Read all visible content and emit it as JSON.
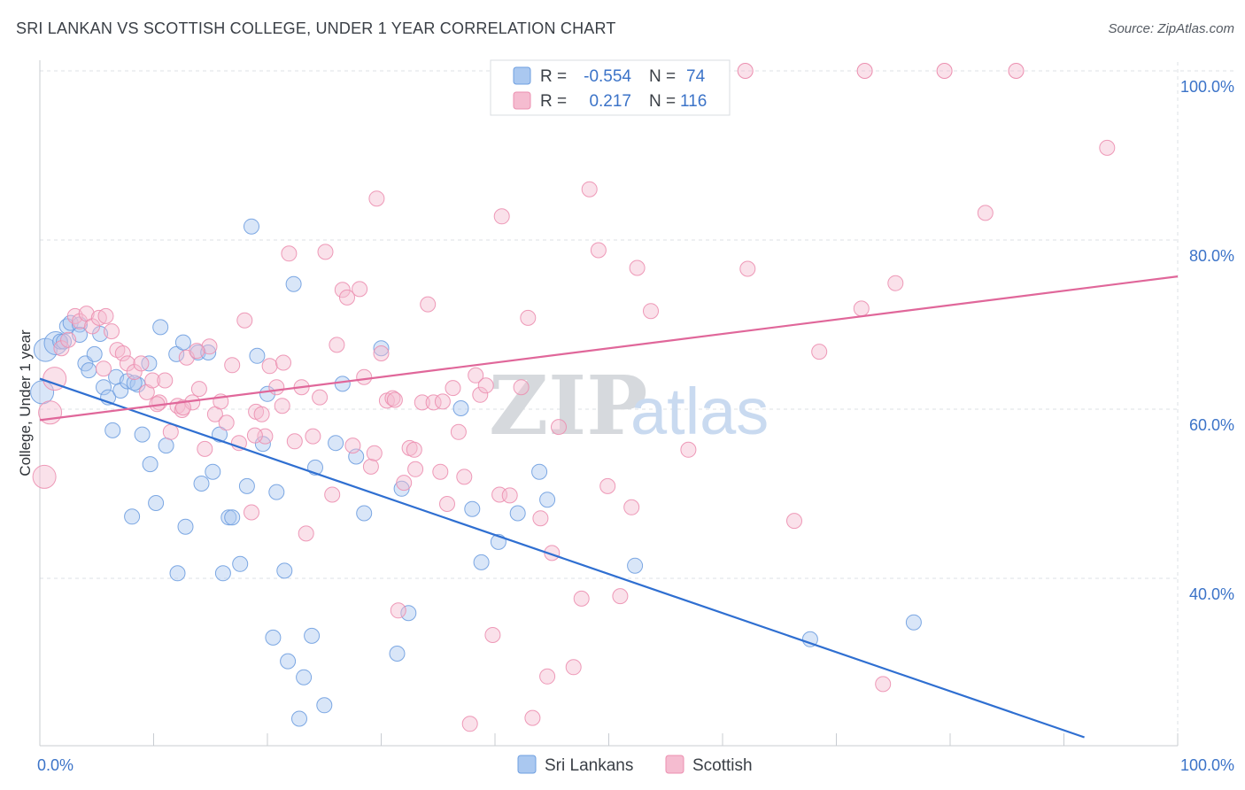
{
  "header": {
    "title": "SRI LANKAN VS SCOTTISH COLLEGE, UNDER 1 YEAR CORRELATION CHART",
    "source": "Source: ZipAtlas.com"
  },
  "watermark": {
    "zip": "ZIP",
    "atlas": "atlas"
  },
  "colors": {
    "blue": "#6f9fe0",
    "blue_fill": "#aac8f0",
    "blue_line": "#2f6fd1",
    "pink": "#ec8fb0",
    "pink_fill": "#f5bcd0",
    "pink_line": "#e0679a",
    "tick": "#3b73c8",
    "grid": "#dde1e6"
  },
  "legend": {
    "rows": [
      {
        "r_label": "R =",
        "r_value": "-0.554",
        "n_label": "N =",
        "n_value": "74"
      },
      {
        "r_label": "R =",
        "r_value": "0.217",
        "n_label": "N =",
        "n_value": "116"
      }
    ]
  },
  "chart_data": {
    "type": "scatter",
    "xlabel": "",
    "ylabel": "College, Under 1 year",
    "xlim": [
      0,
      100
    ],
    "ylim": [
      20,
      102
    ],
    "x_tick_labels": {
      "left": "0.0%",
      "right": "100.0%"
    },
    "y_ticks": [
      {
        "value": 100,
        "label": "100.0%"
      },
      {
        "value": 80,
        "label": "80.0%"
      },
      {
        "value": 60,
        "label": "60.0%"
      },
      {
        "value": 40,
        "label": "40.0%"
      }
    ],
    "grid": true,
    "legend_position": "top-center",
    "series": [
      {
        "name": "Sri Lankans",
        "color": "#6f9fe0",
        "trend": {
          "x": [
            0,
            91.8
          ],
          "y": [
            63.6,
            21.2
          ]
        },
        "points": [
          [
            0.2,
            62.0
          ],
          [
            0.5,
            67.0
          ],
          [
            1.4,
            67.8
          ],
          [
            1.8,
            68.0
          ],
          [
            2.4,
            69.8
          ],
          [
            2.7,
            70.2
          ],
          [
            3.5,
            70.0
          ],
          [
            3.5,
            68.8
          ],
          [
            4.0,
            65.4
          ],
          [
            4.3,
            64.6
          ],
          [
            4.8,
            66.5
          ],
          [
            5.3,
            68.9
          ],
          [
            5.6,
            62.6
          ],
          [
            6.0,
            61.4
          ],
          [
            6.4,
            57.5
          ],
          [
            6.7,
            63.8
          ],
          [
            7.1,
            62.2
          ],
          [
            7.7,
            63.3
          ],
          [
            8.1,
            47.3
          ],
          [
            8.6,
            62.9
          ],
          [
            9.0,
            57.0
          ],
          [
            9.6,
            65.4
          ],
          [
            9.7,
            53.5
          ],
          [
            10.2,
            48.9
          ],
          [
            10.6,
            69.7
          ],
          [
            11.1,
            55.7
          ],
          [
            12.0,
            66.5
          ],
          [
            12.1,
            40.6
          ],
          [
            12.6,
            67.9
          ],
          [
            12.8,
            46.1
          ],
          [
            13.9,
            66.7
          ],
          [
            14.2,
            51.2
          ],
          [
            14.8,
            66.7
          ],
          [
            15.2,
            52.6
          ],
          [
            15.8,
            57.0
          ],
          [
            16.1,
            40.6
          ],
          [
            16.6,
            47.2
          ],
          [
            16.9,
            47.2
          ],
          [
            17.6,
            41.7
          ],
          [
            18.2,
            50.9
          ],
          [
            18.6,
            81.6
          ],
          [
            19.1,
            66.3
          ],
          [
            19.6,
            55.9
          ],
          [
            20.0,
            61.8
          ],
          [
            20.5,
            33.0
          ],
          [
            20.8,
            50.2
          ],
          [
            21.5,
            40.9
          ],
          [
            21.8,
            30.2
          ],
          [
            22.3,
            74.8
          ],
          [
            23.2,
            28.3
          ],
          [
            23.9,
            33.2
          ],
          [
            24.2,
            53.1
          ],
          [
            25.0,
            25.0
          ],
          [
            26.0,
            56.0
          ],
          [
            26.6,
            63.0
          ],
          [
            27.8,
            54.4
          ],
          [
            28.5,
            47.7
          ],
          [
            30.0,
            67.2
          ],
          [
            31.4,
            31.1
          ],
          [
            31.8,
            50.6
          ],
          [
            32.4,
            35.9
          ],
          [
            37.0,
            60.1
          ],
          [
            38.0,
            48.2
          ],
          [
            38.8,
            41.9
          ],
          [
            40.3,
            44.3
          ],
          [
            42.0,
            47.7
          ],
          [
            43.9,
            52.6
          ],
          [
            44.6,
            49.3
          ],
          [
            52.3,
            41.5
          ],
          [
            67.7,
            32.8
          ],
          [
            76.8,
            34.8
          ],
          [
            22.8,
            23.4
          ],
          [
            8.3,
            63.1
          ],
          [
            2.1,
            68.0
          ]
        ]
      },
      {
        "name": "Scottish",
        "color": "#ec8fb0",
        "trend": {
          "x": [
            0,
            100
          ],
          "y": [
            58.7,
            75.7
          ]
        },
        "points": [
          [
            0.4,
            52.0
          ],
          [
            0.9,
            59.6
          ],
          [
            1.3,
            63.6
          ],
          [
            1.9,
            67.2
          ],
          [
            2.5,
            68.2
          ],
          [
            3.1,
            71.0
          ],
          [
            3.5,
            70.4
          ],
          [
            4.1,
            71.3
          ],
          [
            4.6,
            69.8
          ],
          [
            5.2,
            70.8
          ],
          [
            5.8,
            71.0
          ],
          [
            6.3,
            69.2
          ],
          [
            6.8,
            67.0
          ],
          [
            7.3,
            66.6
          ],
          [
            7.7,
            65.4
          ],
          [
            8.3,
            64.4
          ],
          [
            8.9,
            65.4
          ],
          [
            9.4,
            62.0
          ],
          [
            9.9,
            63.4
          ],
          [
            10.5,
            60.8
          ],
          [
            11.0,
            63.4
          ],
          [
            11.5,
            57.3
          ],
          [
            12.1,
            60.4
          ],
          [
            12.5,
            59.9
          ],
          [
            12.9,
            66.1
          ],
          [
            13.4,
            60.8
          ],
          [
            14.0,
            62.4
          ],
          [
            14.5,
            55.3
          ],
          [
            14.9,
            67.4
          ],
          [
            15.4,
            59.4
          ],
          [
            15.9,
            60.9
          ],
          [
            16.4,
            58.4
          ],
          [
            16.9,
            65.2
          ],
          [
            17.5,
            56.0
          ],
          [
            18.0,
            70.5
          ],
          [
            18.6,
            47.8
          ],
          [
            19.0,
            59.7
          ],
          [
            19.5,
            59.4
          ],
          [
            19.8,
            56.8
          ],
          [
            20.2,
            65.1
          ],
          [
            20.8,
            62.6
          ],
          [
            21.4,
            65.5
          ],
          [
            21.9,
            78.4
          ],
          [
            22.4,
            56.2
          ],
          [
            23.0,
            62.6
          ],
          [
            23.4,
            45.3
          ],
          [
            24.0,
            56.8
          ],
          [
            24.6,
            61.4
          ],
          [
            25.1,
            78.6
          ],
          [
            25.7,
            49.9
          ],
          [
            26.1,
            67.6
          ],
          [
            26.6,
            74.1
          ],
          [
            27.0,
            73.2
          ],
          [
            27.5,
            55.7
          ],
          [
            28.1,
            74.2
          ],
          [
            28.5,
            63.8
          ],
          [
            29.1,
            53.2
          ],
          [
            29.6,
            84.9
          ],
          [
            30.0,
            66.6
          ],
          [
            30.5,
            61.0
          ],
          [
            31.0,
            61.3
          ],
          [
            31.5,
            36.2
          ],
          [
            32.0,
            51.3
          ],
          [
            32.5,
            55.4
          ],
          [
            33.0,
            52.9
          ],
          [
            33.6,
            60.8
          ],
          [
            34.1,
            72.4
          ],
          [
            34.6,
            60.8
          ],
          [
            35.2,
            52.6
          ],
          [
            35.8,
            48.8
          ],
          [
            36.3,
            62.5
          ],
          [
            36.8,
            57.3
          ],
          [
            37.3,
            52.0
          ],
          [
            37.8,
            22.8
          ],
          [
            38.3,
            64.0
          ],
          [
            38.7,
            61.7
          ],
          [
            39.2,
            62.8
          ],
          [
            39.8,
            33.3
          ],
          [
            40.4,
            49.9
          ],
          [
            40.6,
            82.8
          ],
          [
            41.3,
            49.8
          ],
          [
            42.3,
            62.6
          ],
          [
            42.9,
            70.8
          ],
          [
            43.3,
            23.5
          ],
          [
            44.0,
            47.1
          ],
          [
            44.6,
            28.4
          ],
          [
            45.0,
            43.0
          ],
          [
            45.6,
            57.9
          ],
          [
            46.9,
            29.5
          ],
          [
            47.6,
            37.6
          ],
          [
            48.3,
            86.0
          ],
          [
            49.1,
            78.8
          ],
          [
            49.9,
            50.9
          ],
          [
            51.0,
            37.9
          ],
          [
            52.0,
            48.4
          ],
          [
            52.5,
            76.7
          ],
          [
            53.7,
            71.6
          ],
          [
            57.0,
            55.2
          ],
          [
            62.2,
            76.6
          ],
          [
            66.3,
            46.8
          ],
          [
            68.5,
            66.8
          ],
          [
            72.2,
            71.9
          ],
          [
            74.1,
            27.5
          ],
          [
            75.2,
            74.9
          ],
          [
            83.1,
            83.2
          ],
          [
            93.8,
            90.9
          ],
          [
            35.4,
            60.9
          ],
          [
            29.4,
            54.8
          ],
          [
            13.8,
            66.9
          ],
          [
            31.2,
            61.1
          ],
          [
            18.9,
            56.9
          ],
          [
            32.9,
            55.2
          ],
          [
            21.3,
            60.4
          ],
          [
            10.3,
            60.6
          ],
          [
            5.6,
            64.8
          ],
          [
            12.6,
            60.2
          ]
        ]
      }
    ]
  },
  "bottom_legend": {
    "items": [
      {
        "label": "Sri Lankans"
      },
      {
        "label": "Scottish"
      }
    ]
  }
}
